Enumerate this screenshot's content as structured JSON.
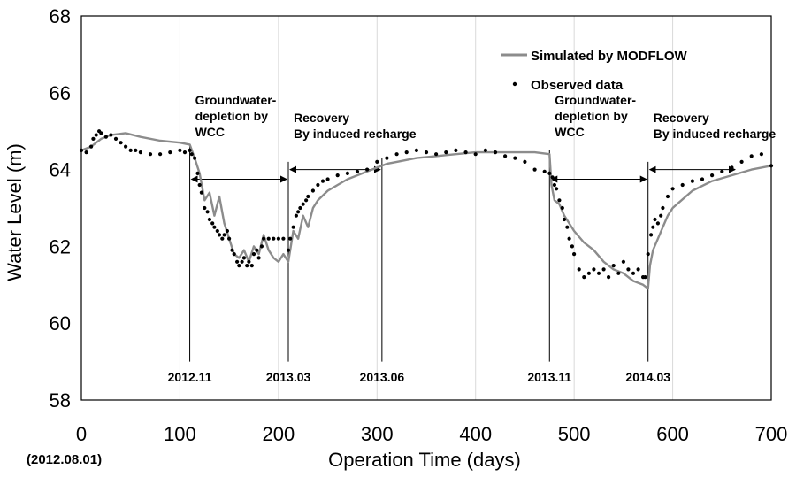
{
  "chart_data": {
    "type": "line",
    "title": "",
    "xlabel": "Operation Time (days)",
    "ylabel": "Water Level (m)",
    "xlim": [
      0,
      700
    ],
    "ylim": [
      58,
      68
    ],
    "x_ticks": [
      0,
      100,
      200,
      300,
      400,
      500,
      600,
      700
    ],
    "y_ticks": [
      58,
      60,
      62,
      64,
      66,
      68
    ],
    "x_start_note": "(2012.08.01)",
    "grid": "vertical",
    "legend_position": "top-right",
    "series": [
      {
        "name": "Simulated by MODFLOW",
        "style": "line",
        "color": "#8c8c8c",
        "x": [
          0,
          10,
          20,
          30,
          45,
          60,
          80,
          100,
          110,
          115,
          120,
          125,
          130,
          135,
          140,
          145,
          150,
          155,
          160,
          165,
          170,
          175,
          180,
          185,
          190,
          195,
          200,
          205,
          210,
          215,
          220,
          225,
          230,
          235,
          240,
          250,
          260,
          270,
          280,
          290,
          300,
          310,
          320,
          340,
          360,
          380,
          400,
          420,
          440,
          460,
          475,
          477,
          480,
          485,
          490,
          495,
          500,
          510,
          520,
          530,
          540,
          550,
          560,
          570,
          575,
          577,
          580,
          585,
          590,
          595,
          600,
          620,
          640,
          660,
          680,
          700
        ],
        "y": [
          64.5,
          64.6,
          64.8,
          64.9,
          64.95,
          64.85,
          64.75,
          64.7,
          64.65,
          64.3,
          63.9,
          63.2,
          63.4,
          62.8,
          63.3,
          62.6,
          62.2,
          61.8,
          61.7,
          61.9,
          61.6,
          62.0,
          61.8,
          62.3,
          61.9,
          61.7,
          61.6,
          61.8,
          61.6,
          62.4,
          62.2,
          62.8,
          62.5,
          63.0,
          63.2,
          63.45,
          63.6,
          63.75,
          63.85,
          63.95,
          64.05,
          64.15,
          64.2,
          64.3,
          64.35,
          64.4,
          64.45,
          64.45,
          64.45,
          64.45,
          64.4,
          63.6,
          63.2,
          63.1,
          62.8,
          62.6,
          62.4,
          62.1,
          61.9,
          61.6,
          61.4,
          61.3,
          61.1,
          61.0,
          60.9,
          61.5,
          61.9,
          62.2,
          62.5,
          62.8,
          63.0,
          63.45,
          63.7,
          63.85,
          64.0,
          64.1
        ]
      },
      {
        "name": "Observed data",
        "style": "dots",
        "color": "#000000",
        "x": [
          0,
          5,
          10,
          12,
          15,
          18,
          20,
          25,
          30,
          35,
          40,
          45,
          50,
          55,
          60,
          70,
          80,
          90,
          100,
          105,
          110,
          112,
          115,
          118,
          120,
          122,
          125,
          128,
          130,
          133,
          135,
          138,
          140,
          143,
          145,
          148,
          150,
          153,
          155,
          158,
          160,
          163,
          165,
          168,
          170,
          173,
          175,
          178,
          180,
          183,
          185,
          190,
          195,
          200,
          205,
          210,
          212,
          215,
          218,
          220,
          222,
          225,
          228,
          230,
          235,
          240,
          245,
          250,
          260,
          270,
          280,
          290,
          300,
          310,
          320,
          330,
          340,
          350,
          360,
          370,
          380,
          390,
          400,
          410,
          420,
          430,
          440,
          450,
          460,
          470,
          475,
          478,
          480,
          482,
          485,
          488,
          490,
          493,
          495,
          498,
          500,
          505,
          510,
          515,
          520,
          525,
          530,
          535,
          540,
          545,
          550,
          555,
          560,
          565,
          570,
          572,
          575,
          578,
          580,
          582,
          585,
          588,
          590,
          595,
          600,
          610,
          620,
          630,
          640,
          650,
          660,
          670,
          680,
          690,
          700
        ],
        "y": [
          64.5,
          64.45,
          64.6,
          64.8,
          64.9,
          65.0,
          64.95,
          64.85,
          64.9,
          64.8,
          64.7,
          64.6,
          64.5,
          64.5,
          64.45,
          64.4,
          64.4,
          64.45,
          64.5,
          64.45,
          64.5,
          64.4,
          64.3,
          63.9,
          63.6,
          63.4,
          63.0,
          62.9,
          62.7,
          62.6,
          62.5,
          62.4,
          62.3,
          62.2,
          62.3,
          62.4,
          62.2,
          61.9,
          61.8,
          61.6,
          61.5,
          61.6,
          61.7,
          61.5,
          61.6,
          61.5,
          61.8,
          61.9,
          61.7,
          62.0,
          62.2,
          62.2,
          62.2,
          62.2,
          62.2,
          61.9,
          62.2,
          62.5,
          62.8,
          62.9,
          63.0,
          63.1,
          63.2,
          63.3,
          63.45,
          63.6,
          63.7,
          63.75,
          63.85,
          63.9,
          63.95,
          64.0,
          64.2,
          64.3,
          64.4,
          64.45,
          64.5,
          64.45,
          64.4,
          64.45,
          64.5,
          64.45,
          64.4,
          64.5,
          64.45,
          64.35,
          64.3,
          64.2,
          64.0,
          63.95,
          63.9,
          63.8,
          63.6,
          63.5,
          63.2,
          63.0,
          62.7,
          62.5,
          62.2,
          62.0,
          61.8,
          61.4,
          61.2,
          61.3,
          61.4,
          61.3,
          61.4,
          61.2,
          61.5,
          61.3,
          61.6,
          61.4,
          61.3,
          61.4,
          61.2,
          61.2,
          61.8,
          62.3,
          62.5,
          62.7,
          62.6,
          62.8,
          63.0,
          63.3,
          63.5,
          63.6,
          63.7,
          63.75,
          63.85,
          63.95,
          64.05,
          64.2,
          64.35,
          64.4,
          64.1
        ]
      }
    ],
    "annotations": [
      {
        "text_lines": [
          "Groundwater-",
          "depletion by",
          "WCC"
        ],
        "from_x": 110,
        "to_x": 210,
        "arrow_y": 63.75
      },
      {
        "text_lines": [
          "Recovery",
          "By induced recharge"
        ],
        "from_x": 210,
        "to_x": 305,
        "arrow_y": 64.0
      },
      {
        "text_lines": [
          "Groundwater-",
          "depletion by",
          "WCC"
        ],
        "from_x": 475,
        "to_x": 575,
        "arrow_y": 63.75
      },
      {
        "text_lines": [
          "Recovery",
          "By induced recharge"
        ],
        "from_x": 575,
        "to_x": 665,
        "arrow_y": 64.0
      }
    ],
    "event_lines": [
      {
        "x": 110,
        "label": "2012.11",
        "y_from": 59.0,
        "y_to": 64.6
      },
      {
        "x": 210,
        "label": "2013.03",
        "y_from": 59.0,
        "y_to": 64.2
      },
      {
        "x": 305,
        "label": "2013.06",
        "y_from": 59.0,
        "y_to": 64.3
      },
      {
        "x": 475,
        "label": "2013.11",
        "y_from": 59.0,
        "y_to": 64.5
      },
      {
        "x": 575,
        "label": "2014.03",
        "y_from": 59.0,
        "y_to": 64.2
      }
    ]
  }
}
